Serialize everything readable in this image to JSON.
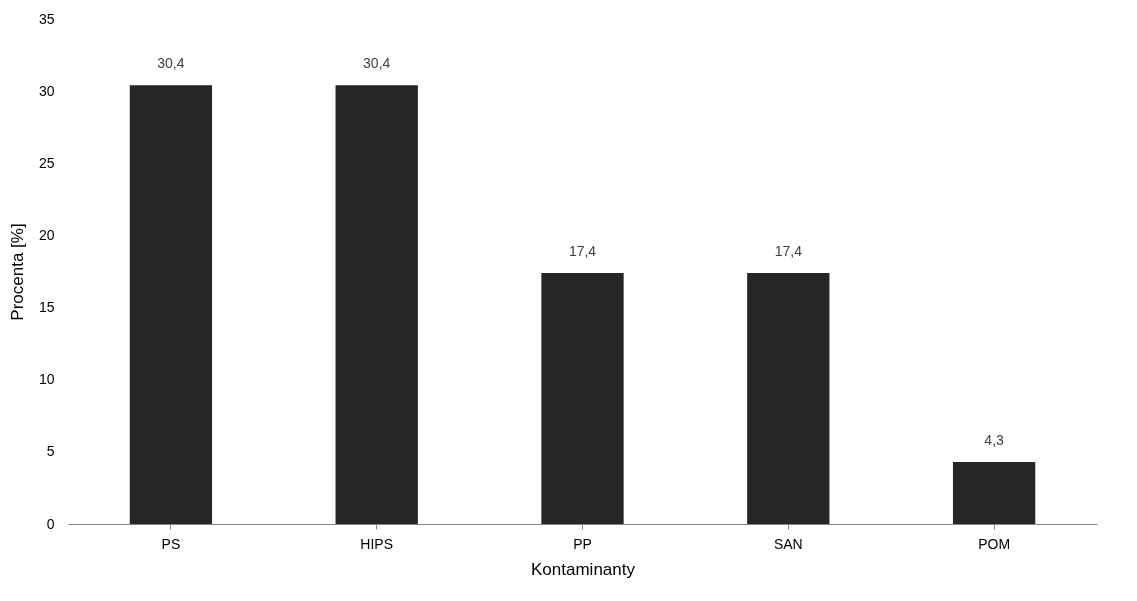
{
  "chart_data": {
    "type": "bar",
    "xlabel": "Kontaminanty",
    "ylabel": "Procenta [%]",
    "categories": [
      "PS",
      "HIPS",
      "PP",
      "SAN",
      "POM"
    ],
    "values": [
      30.4,
      30.4,
      17.4,
      17.4,
      4.3
    ],
    "value_labels": [
      "30,4",
      "30,4",
      "17,4",
      "17,4",
      "4,3"
    ],
    "color": "#262626",
    "ylim": [
      0,
      35
    ],
    "yticks": [
      0,
      5,
      10,
      15,
      20,
      25,
      30,
      35
    ],
    "grid": false
  }
}
